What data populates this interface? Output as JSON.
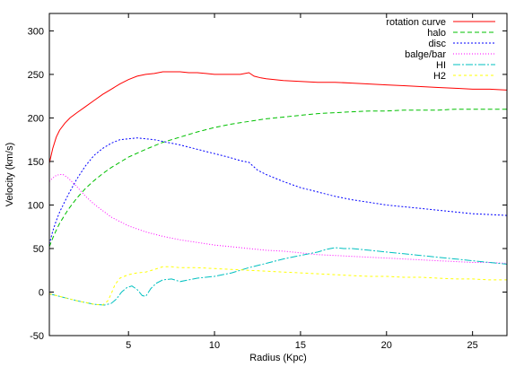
{
  "chart_data": {
    "type": "line",
    "xlabel": "Radius (Kpc)",
    "ylabel": "Velocity (km/s)",
    "xlim": [
      0.4,
      27.0
    ],
    "ylim": [
      -50,
      320
    ],
    "xticks": [
      5,
      10,
      15,
      20,
      25
    ],
    "yticks": [
      -50,
      0,
      50,
      100,
      150,
      200,
      250,
      300
    ],
    "grid": false,
    "legend_position": "top-right",
    "series": [
      {
        "name": "rotation curve",
        "color": "#ff0000",
        "dash": "solid",
        "x": [
          0.4,
          0.6,
          0.8,
          1.0,
          1.3,
          1.6,
          2.0,
          2.5,
          3.0,
          3.5,
          4.0,
          4.5,
          5.0,
          5.5,
          6.0,
          6.5,
          7.0,
          7.5,
          8.0,
          8.5,
          9.0,
          9.5,
          10.0,
          10.5,
          11.0,
          11.5,
          12.0,
          12.3,
          12.7,
          13.0,
          14.0,
          15.0,
          16.0,
          17.0,
          18.0,
          19.0,
          20.0,
          21.0,
          22.0,
          23.0,
          24.0,
          25.0,
          26.0,
          27.0
        ],
        "y": [
          148,
          165,
          178,
          186,
          194,
          200,
          206,
          213,
          220,
          227,
          233,
          239,
          244,
          248,
          250,
          251,
          253,
          253,
          253,
          252,
          252,
          251,
          250,
          250,
          250,
          250,
          252,
          248,
          246,
          245,
          243,
          242,
          241,
          241,
          240,
          239,
          238,
          237,
          236,
          235,
          234,
          233,
          233,
          232
        ]
      },
      {
        "name": "halo",
        "color": "#00c000",
        "dash": "5,3",
        "x": [
          0.4,
          0.6,
          0.8,
          1.0,
          1.5,
          2.0,
          2.5,
          3.0,
          3.5,
          4.0,
          5.0,
          6.0,
          7.0,
          8.0,
          9.0,
          10.0,
          11.0,
          12.0,
          13.0,
          14.0,
          15.0,
          16.0,
          17.0,
          18.0,
          19.0,
          20.0,
          21.0,
          22.0,
          23.0,
          24.0,
          25.0,
          26.0,
          27.0
        ],
        "y": [
          52,
          62,
          71,
          79,
          95,
          108,
          119,
          128,
          136,
          143,
          155,
          164,
          172,
          178,
          184,
          189,
          193,
          196,
          199,
          201,
          203,
          205,
          206,
          207,
          208,
          208,
          209,
          209,
          209,
          210,
          210,
          210,
          210
        ]
      },
      {
        "name": "disc",
        "color": "#0000ff",
        "dash": "2,2",
        "x": [
          0.4,
          0.6,
          0.8,
          1.0,
          1.5,
          2.0,
          2.5,
          3.0,
          3.5,
          4.0,
          4.5,
          5.0,
          5.5,
          6.0,
          6.5,
          7.0,
          7.5,
          8.0,
          9.0,
          10.0,
          11.0,
          11.5,
          12.0,
          12.5,
          13.0,
          14.0,
          15.0,
          16.0,
          17.0,
          18.0,
          19.0,
          20.0,
          21.0,
          22.0,
          23.0,
          24.0,
          25.0,
          26.0,
          27.0
        ],
        "y": [
          55,
          70,
          82,
          92,
          112,
          130,
          145,
          157,
          165,
          171,
          175,
          176,
          177,
          176,
          175,
          173,
          171,
          169,
          164,
          159,
          154,
          151,
          149,
          140,
          135,
          127,
          120,
          115,
          110,
          106,
          103,
          100,
          98,
          96,
          94,
          92,
          90,
          89,
          88
        ]
      },
      {
        "name": "balge/bar",
        "color": "#ff00ff",
        "dash": "1,2",
        "x": [
          0.4,
          0.6,
          0.8,
          1.0,
          1.2,
          1.5,
          2.0,
          2.5,
          3.0,
          4.0,
          5.0,
          6.0,
          7.0,
          8.0,
          9.0,
          10.0,
          11.0,
          12.0,
          13.0,
          14.0,
          15.0,
          16.0,
          17.0,
          18.0,
          19.0,
          20.0,
          21.0,
          22.0,
          23.0,
          24.0,
          25.0,
          26.0,
          27.0
        ],
        "y": [
          127,
          131,
          134,
          135,
          135,
          131,
          121,
          110,
          101,
          86,
          76,
          69,
          64,
          60,
          57,
          54,
          52,
          50,
          48,
          47,
          45,
          43,
          42,
          41,
          40,
          39,
          38,
          37,
          36,
          35,
          34,
          34,
          33
        ]
      },
      {
        "name": "HI",
        "color": "#00c0c0",
        "dash": "8,2,2,2",
        "x": [
          0.4,
          1.0,
          2.0,
          3.0,
          3.6,
          4.0,
          4.3,
          4.6,
          4.9,
          5.2,
          5.5,
          5.8,
          6.0,
          6.3,
          6.6,
          7.0,
          7.5,
          8.0,
          8.5,
          9.0,
          10.0,
          11.0,
          12.0,
          13.0,
          14.0,
          15.0,
          16.0,
          16.5,
          17.0,
          17.5,
          18.0,
          19.0,
          20.0,
          21.0,
          22.0,
          23.0,
          24.0,
          25.0,
          26.0,
          27.0
        ],
        "y": [
          -2,
          -5,
          -10,
          -14,
          -15,
          -13,
          -8,
          0,
          5,
          7,
          3,
          -4,
          -5,
          4,
          10,
          14,
          15,
          12,
          14,
          16,
          18,
          22,
          28,
          33,
          38,
          42,
          46,
          49,
          51,
          50,
          50,
          48,
          46,
          44,
          42,
          40,
          38,
          36,
          34,
          32
        ]
      },
      {
        "name": "H2",
        "color": "#ffff00",
        "dash": "3,3",
        "x": [
          0.4,
          1.0,
          2.0,
          3.0,
          3.5,
          3.8,
          4.0,
          4.2,
          4.5,
          5.0,
          5.5,
          6.0,
          6.5,
          7.0,
          7.5,
          8.0,
          9.0,
          10.0,
          11.0,
          12.0,
          13.0,
          14.0,
          15.0,
          16.0,
          17.0,
          18.0,
          19.0,
          20.0,
          21.0,
          22.0,
          23.0,
          24.0,
          25.0,
          26.0,
          27.0
        ],
        "y": [
          -2,
          -5,
          -10,
          -14,
          -15,
          -10,
          -2,
          8,
          16,
          20,
          22,
          23,
          26,
          29,
          29,
          28,
          28,
          27,
          26,
          25,
          24,
          23,
          22,
          21,
          20,
          19,
          18,
          18,
          17,
          17,
          16,
          15,
          15,
          14,
          14
        ]
      }
    ]
  }
}
